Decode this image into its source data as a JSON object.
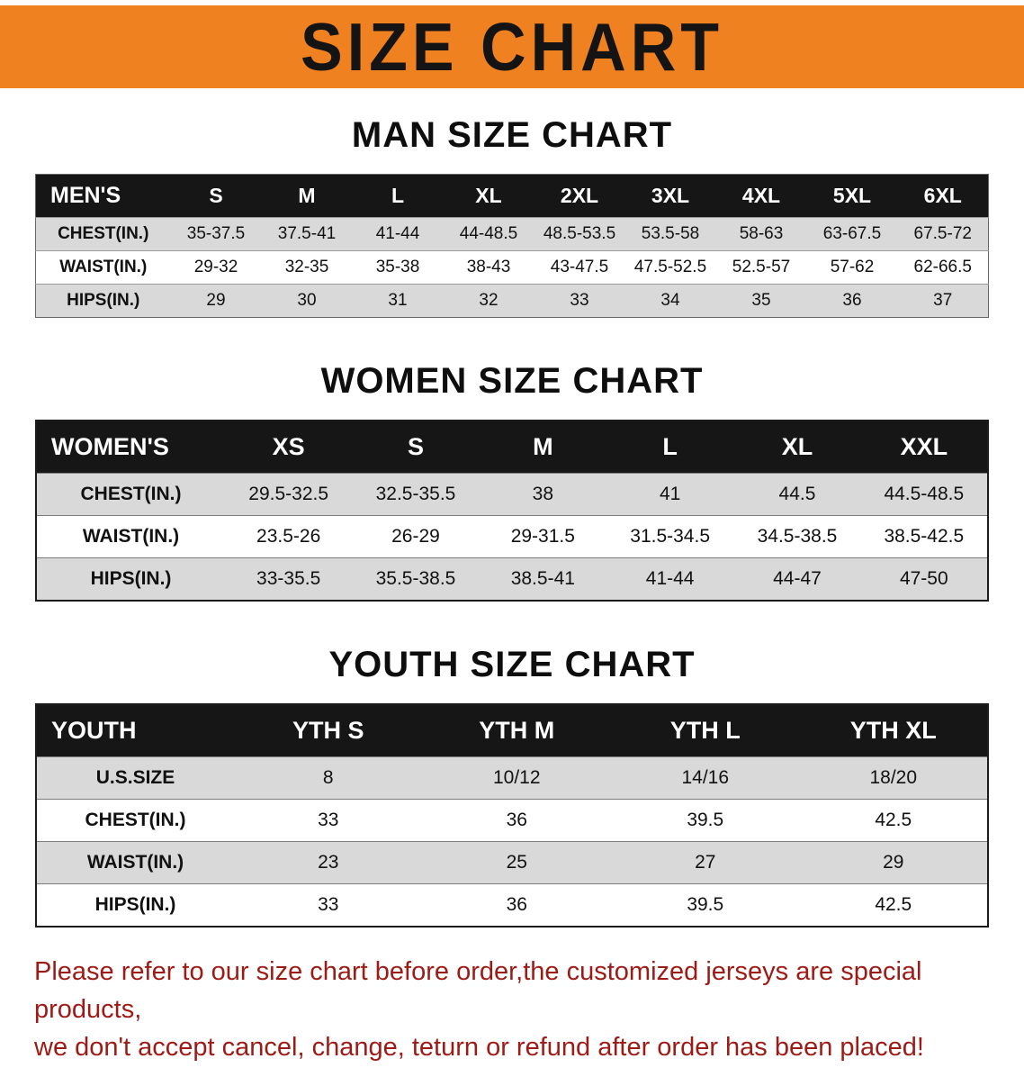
{
  "banner": {
    "title": "SIZE CHART"
  },
  "colors": {
    "banner_bg": "#f08121",
    "header_bg": "#161616",
    "stripe": "#d9d9d9",
    "disclaimer_color": "#9e1a15"
  },
  "sections": {
    "men": {
      "title": "MAN SIZE CHART",
      "table": {
        "header": [
          "MEN'S",
          "S",
          "M",
          "L",
          "XL",
          "2XL",
          "3XL",
          "4XL",
          "5XL",
          "6XL"
        ],
        "rows": [
          {
            "label": "CHEST(IN.)",
            "values": [
              "35-37.5",
              "37.5-41",
              "41-44",
              "44-48.5",
              "48.5-53.5",
              "53.5-58",
              "58-63",
              "63-67.5",
              "67.5-72"
            ]
          },
          {
            "label": "WAIST(IN.)",
            "values": [
              "29-32",
              "32-35",
              "35-38",
              "38-43",
              "43-47.5",
              "47.5-52.5",
              "52.5-57",
              "57-62",
              "62-66.5"
            ]
          },
          {
            "label": "HIPS(IN.)",
            "values": [
              "29",
              "30",
              "31",
              "32",
              "33",
              "34",
              "35",
              "36",
              "37"
            ]
          }
        ]
      }
    },
    "women": {
      "title": "WOMEN SIZE CHART",
      "table": {
        "header": [
          "WOMEN'S",
          "XS",
          "S",
          "M",
          "L",
          "XL",
          "XXL"
        ],
        "rows": [
          {
            "label": "CHEST(IN.)",
            "values": [
              "29.5-32.5",
              "32.5-35.5",
              "38",
              "41",
              "44.5",
              "44.5-48.5"
            ]
          },
          {
            "label": "WAIST(IN.)",
            "values": [
              "23.5-26",
              "26-29",
              "29-31.5",
              "31.5-34.5",
              "34.5-38.5",
              "38.5-42.5"
            ]
          },
          {
            "label": "HIPS(IN.)",
            "values": [
              "33-35.5",
              "35.5-38.5",
              "38.5-41",
              "41-44",
              "44-47",
              "47-50"
            ]
          }
        ]
      }
    },
    "youth": {
      "title": "YOUTH SIZE CHART",
      "table": {
        "header": [
          "YOUTH",
          "YTH S",
          "YTH M",
          "YTH L",
          "YTH XL"
        ],
        "rows": [
          {
            "label": "U.S.SIZE",
            "values": [
              "8",
              "10/12",
              "14/16",
              "18/20"
            ]
          },
          {
            "label": "CHEST(IN.)",
            "values": [
              "33",
              "36",
              "39.5",
              "42.5"
            ]
          },
          {
            "label": "WAIST(IN.)",
            "values": [
              "23",
              "25",
              "27",
              "29"
            ]
          },
          {
            "label": "HIPS(IN.)",
            "values": [
              "33",
              "36",
              "39.5",
              "42.5"
            ]
          }
        ]
      }
    }
  },
  "disclaimer": {
    "line1": "Please refer to our size chart before order,the customized jerseys are special products,",
    "line2": "we don't accept cancel, change, teturn or refund after order has been placed!"
  }
}
